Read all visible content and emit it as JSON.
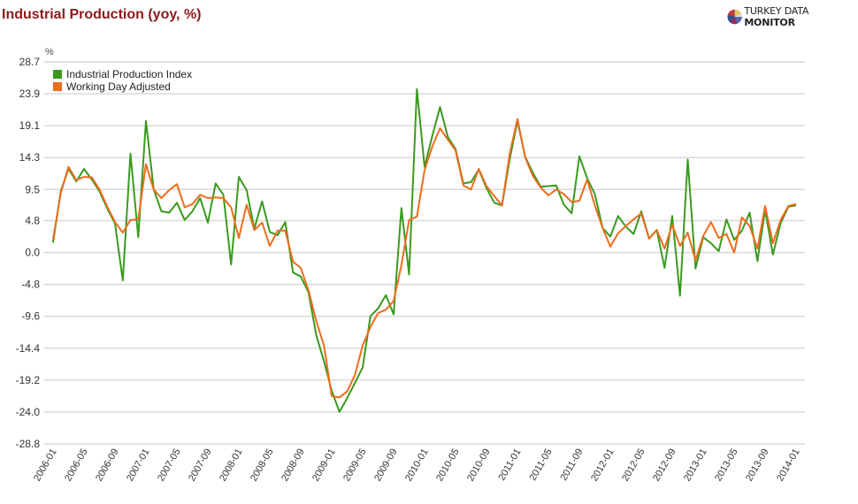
{
  "header": {
    "title": "Industrial Production (yoy, %)",
    "logo_word1": "TURKEY DATA ",
    "logo_word2": "MONITOR"
  },
  "colors": {
    "title": "#8b1a1a",
    "series_ipi": "#3a9a1e",
    "series_wda": "#ee6c1e",
    "grid": "#d9d9d9"
  },
  "chart_data": {
    "type": "line",
    "title": "Industrial Production (yoy, %)",
    "xlabel": "",
    "ylabel": "%",
    "ylim": [
      -28.8,
      28.7
    ],
    "yticks": [
      28.7,
      23.9,
      19.1,
      14.3,
      9.5,
      4.8,
      0.0,
      -4.8,
      -9.6,
      -14.4,
      -19.2,
      -24.0,
      -28.8
    ],
    "ytick_labels": [
      "28.7",
      "23.9",
      "19.1",
      "14.3",
      "9.5",
      "4.8",
      "0.0",
      "-4.8",
      "-9.6",
      "-14.4",
      "-19.2",
      "-24.0",
      "-28.8"
    ],
    "xtick_labels": [
      "2006-01",
      "2006-05",
      "2006-09",
      "2007-01",
      "2007-05",
      "2007-09",
      "2008-01",
      "2008-05",
      "2008-09",
      "2009-01",
      "2009-05",
      "2009-09",
      "2010-01",
      "2010-05",
      "2010-09",
      "2011-01",
      "2011-05",
      "2011-09",
      "2012-01",
      "2012-05",
      "2012-09",
      "2013-01",
      "2013-05",
      "2013-09",
      "2014-01"
    ],
    "x_start": "2006-01",
    "x_end": "2014-01",
    "grid": true,
    "legend_position": "top-left",
    "series": [
      {
        "name": "Industrial Production Index",
        "color": "#3a9a1e",
        "values": [
          1.5,
          9.3,
          12.6,
          10.7,
          12.6,
          11.0,
          9.2,
          6.6,
          4.4,
          -4.2,
          14.9,
          2.3,
          19.8,
          9.5,
          6.2,
          6.0,
          7.5,
          4.9,
          6.2,
          8.2,
          4.5,
          10.4,
          8.7,
          -1.8,
          11.4,
          9.4,
          3.6,
          7.7,
          3.1,
          2.6,
          4.6,
          -3.0,
          -3.6,
          -6.0,
          -12.4,
          -16.4,
          -20.8,
          -24.0,
          -21.9,
          -19.6,
          -17.3,
          -9.6,
          -8.4,
          -6.4,
          -9.3,
          6.7,
          -3.3,
          24.6,
          12.9,
          17.6,
          21.9,
          17.4,
          15.6,
          10.4,
          10.6,
          12.5,
          9.7,
          7.5,
          7.1,
          14.1,
          19.8,
          14.4,
          12.0,
          9.9,
          10.0,
          10.1,
          7.2,
          5.9,
          14.5,
          11.2,
          8.8,
          3.7,
          2.4,
          5.5,
          3.9,
          2.8,
          6.2,
          2.1,
          3.4,
          -2.3,
          5.5,
          -6.5,
          14.0,
          -2.4,
          2.3,
          1.4,
          0.2,
          5.0,
          1.9,
          3.3,
          6.0,
          -1.3,
          6.4,
          -0.3,
          4.4,
          6.9,
          7.1
        ]
      },
      {
        "name": "Working Day Adjusted",
        "color": "#ee6c1e",
        "values": [
          2.0,
          9.0,
          12.9,
          10.9,
          11.4,
          11.3,
          9.5,
          6.9,
          4.6,
          3.0,
          4.9,
          5.0,
          13.3,
          9.5,
          8.2,
          9.4,
          10.3,
          6.8,
          7.3,
          8.7,
          8.2,
          8.3,
          8.2,
          6.8,
          2.2,
          7.2,
          3.4,
          4.5,
          1.0,
          3.3,
          3.3,
          -1.4,
          -2.3,
          -5.7,
          -10.3,
          -14.0,
          -21.6,
          -21.8,
          -20.9,
          -18.4,
          -14.0,
          -11.2,
          -9.1,
          -8.6,
          -7.3,
          -1.9,
          4.9,
          5.4,
          12.4,
          16.0,
          18.7,
          17.0,
          15.4,
          10.1,
          9.5,
          12.6,
          10.0,
          8.5,
          7.1,
          14.9,
          20.1,
          14.3,
          11.5,
          9.8,
          8.6,
          9.5,
          8.8,
          7.6,
          7.8,
          11.0,
          7.1,
          3.7,
          0.9,
          2.9,
          4.0,
          5.0,
          5.9,
          2.1,
          3.4,
          0.6,
          4.2,
          1.0,
          3.0,
          -1.2,
          2.5,
          4.6,
          2.2,
          2.8,
          0.0,
          5.3,
          4.0,
          0.6,
          7.0,
          1.4,
          4.9,
          7.0,
          7.3
        ]
      }
    ]
  }
}
